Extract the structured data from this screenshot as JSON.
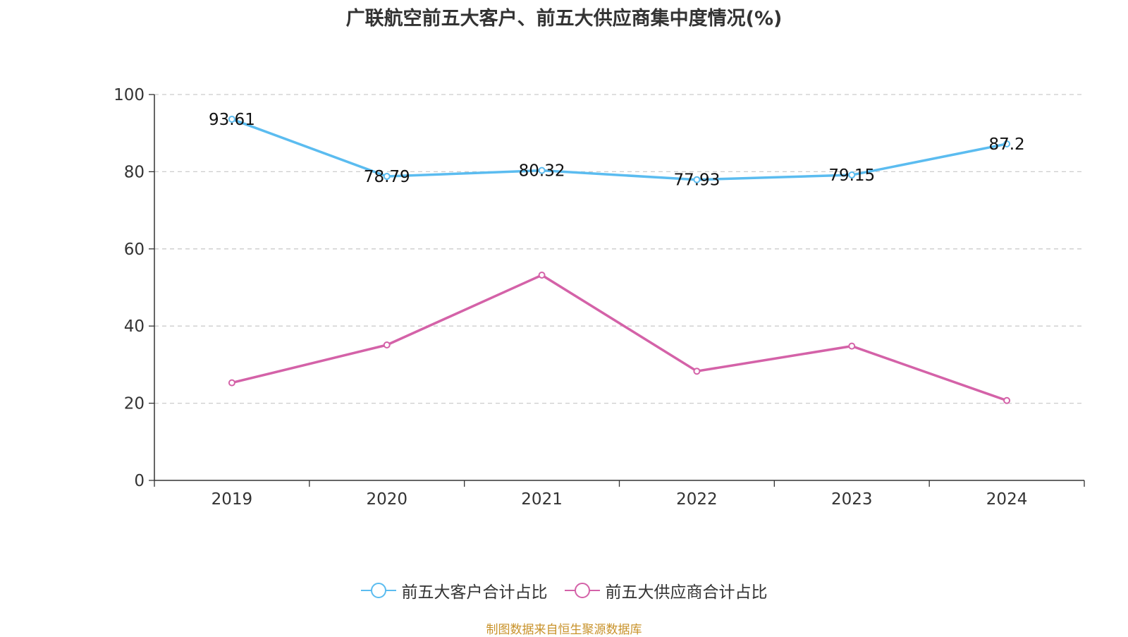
{
  "chart_data": {
    "type": "line",
    "title": "广联航空前五大客户、前五大供应商集中度情况(%)",
    "categories": [
      "2019",
      "2020",
      "2021",
      "2022",
      "2023",
      "2024"
    ],
    "ylim": [
      0,
      100
    ],
    "yticks": [
      0,
      20,
      40,
      60,
      80,
      100
    ],
    "grid": true,
    "legend_position": "bottom",
    "series": [
      {
        "name": "前五大客户合计占比",
        "color": "#5bbcf0",
        "values": [
          93.61,
          78.79,
          80.32,
          77.93,
          79.15,
          87.2
        ],
        "labels": [
          "93.61",
          "78.79",
          "80.32",
          "77.93",
          "79.15",
          "87.2"
        ],
        "show_labels": true
      },
      {
        "name": "前五大供应商合计占比",
        "color": "#d462a8",
        "values": [
          25.3,
          35.1,
          53.2,
          28.3,
          34.8,
          20.7
        ],
        "show_labels": false
      }
    ]
  },
  "source_note": "制图数据来自恒生聚源数据库"
}
